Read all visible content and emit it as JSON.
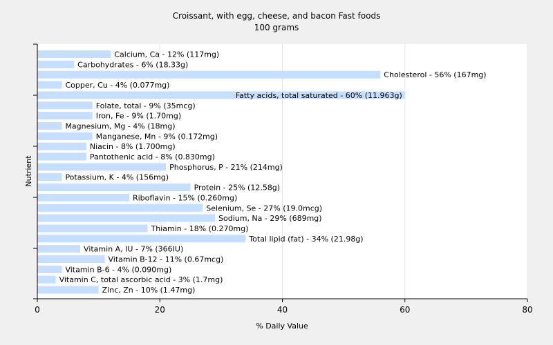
{
  "chart_data": {
    "type": "bar",
    "orientation": "horizontal",
    "title": "Croissant, with egg, cheese, and bacon Fast foods",
    "subtitle": "100 grams",
    "xlabel": "% Daily Value",
    "ylabel": "Nutrient",
    "xlim": [
      0,
      80
    ],
    "xticks": [
      0,
      20,
      40,
      60,
      80
    ],
    "grid": true,
    "bar_color": "#c6deff",
    "categories": [
      "Calcium, Ca - 12% (117mg)",
      "Carbohydrates - 6% (18.33g)",
      "Cholesterol - 56% (167mg)",
      "Copper, Cu - 4% (0.077mg)",
      "Fatty acids, total saturated - 60% (11.963g)",
      "Folate, total - 9% (35mcg)",
      "Iron, Fe - 9% (1.70mg)",
      "Magnesium, Mg - 4% (18mg)",
      "Manganese, Mn - 9% (0.172mg)",
      "Niacin - 8% (1.700mg)",
      "Pantothenic acid - 8% (0.830mg)",
      "Phosphorus, P - 21% (214mg)",
      "Potassium, K - 4% (156mg)",
      "Protein - 25% (12.58g)",
      "Riboflavin - 15% (0.260mg)",
      "Selenium, Se - 27% (19.0mcg)",
      "Sodium, Na - 29% (689mg)",
      "Thiamin - 18% (0.270mg)",
      "Total lipid (fat) - 34% (21.98g)",
      "Vitamin A, IU - 7% (366IU)",
      "Vitamin B-12 - 11% (0.67mcg)",
      "Vitamin B-6 - 4% (0.090mg)",
      "Vitamin C, total ascorbic acid - 3% (1.7mg)",
      "Zinc, Zn - 10% (1.47mg)"
    ],
    "values": [
      12,
      6,
      56,
      4,
      60,
      9,
      9,
      4,
      9,
      8,
      8,
      21,
      4,
      25,
      15,
      27,
      29,
      18,
      34,
      7,
      11,
      4,
      3,
      10
    ]
  }
}
